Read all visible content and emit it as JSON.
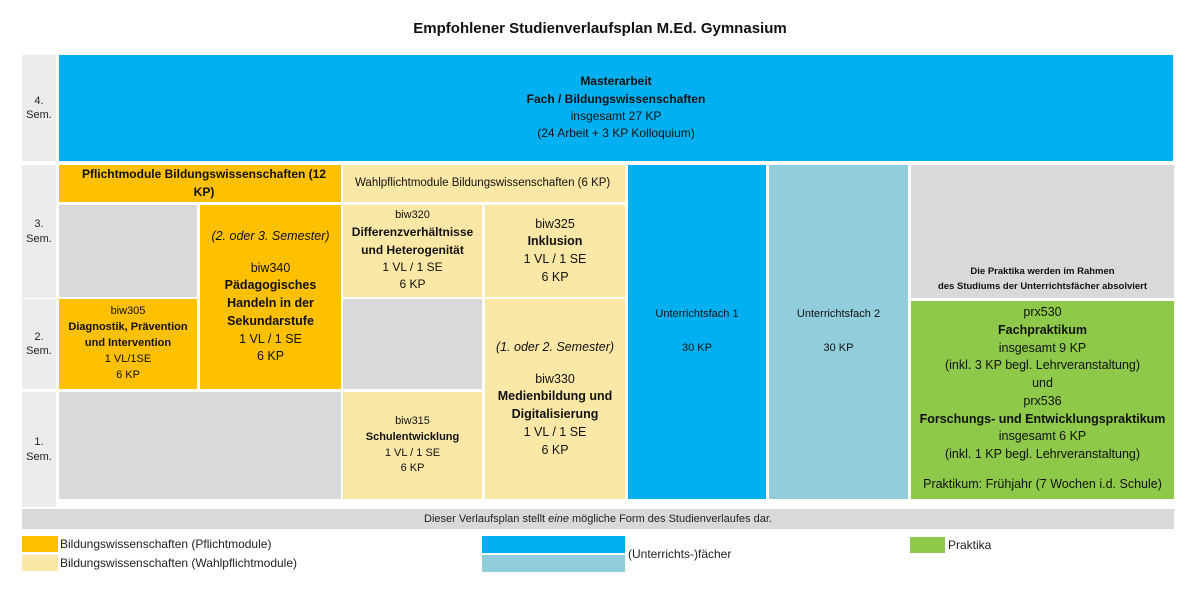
{
  "title": "Empfohlener Studienverlaufsplan M.Ed. Gymnasium",
  "semesters": {
    "s4": "4.\nSem.",
    "s3": "3.\nSem.",
    "s2": "2.\nSem.",
    "s1": "1.\nSem."
  },
  "master": {
    "line1": "Masterarbeit",
    "line2": "Fach / Bildungswissenschaften",
    "line3": "insgesamt 27 KP",
    "line4": "(24 Arbeit + 3 KP Kolloquium)"
  },
  "headers": {
    "pflicht": "Pflichtmodule Bildungswissenschaften (12 KP)",
    "wahlpflicht": "Wahlpflichtmodule Bildungswissenschaften (6 KP)"
  },
  "biw340": {
    "note": "(2. oder 3. Semester)",
    "code": "biw340",
    "name": "Pädagogisches Handeln in der Sekundarstufe",
    "format": "1 VL / 1 SE",
    "kp": "6 KP"
  },
  "biw305": {
    "code": "biw305",
    "name": "Diagnostik, Prävention und Intervention",
    "format": "1 VL/1SE",
    "kp": "6 KP"
  },
  "biw320": {
    "code": "biw320",
    "name": "Differenzverhältnisse und Heterogenität",
    "format": "1 VL / 1 SE",
    "kp": "6 KP"
  },
  "biw325": {
    "code": "biw325",
    "name": "Inklusion",
    "format": "1 VL / 1 SE",
    "kp": "6 KP"
  },
  "biw330": {
    "note": "(1. oder 2. Semester)",
    "code": "biw330",
    "name": "Medienbildung und Digitalisierung",
    "format": "1 VL / 1 SE",
    "kp": "6 KP"
  },
  "biw315": {
    "code": "biw315",
    "name": "Schulentwicklung",
    "format": "1 VL / 1 SE",
    "kp": "6 KP"
  },
  "fach1": {
    "name": "Unterrichtsfach 1",
    "kp": "30 KP"
  },
  "fach2": {
    "name": "Unterrichtsfach 2",
    "kp": "30 KP"
  },
  "praktika_note": {
    "line1": "Die Praktika werden im Rahmen",
    "line2": "des Studiums der Unterrichtsfächer absolviert"
  },
  "praktika": {
    "code1": "prx530",
    "name1": "Fachpraktikum",
    "kp1": "insgesamt 9 KP",
    "incl1": "(inkl. 3 KP begl. Lehrveranstaltung)",
    "und": "und",
    "code2": "prx536",
    "name2": "Forschungs- und Entwicklungspraktikum",
    "kp2": "insgesamt 6 KP",
    "incl2": "(inkl. 1 KP begl. Lehrveranstaltung)",
    "time": "Praktikum: Frühjahr (7 Wochen i.d. Schule)"
  },
  "footer": {
    "before": "Dieser Verlaufsplan stellt ",
    "emph": "eine",
    "after": " mögliche Form des Studienverlaufes dar."
  },
  "legend": {
    "pflicht": "Bildungswissenschaften (Pflichtmodule)",
    "wahlpflicht": "Bildungswissenschaften (Wahlpflichtmodule)",
    "faecher": "(Unterrichts-)fächer",
    "praktika": "Praktika"
  },
  "colors": {
    "pflicht": "#ffc000",
    "wahlpflicht": "#fce8a6",
    "fach_dark": "#00b0f0",
    "fach_light": "#92cddc",
    "praktika": "#8ec94a",
    "empty": "#d9d9d9"
  }
}
